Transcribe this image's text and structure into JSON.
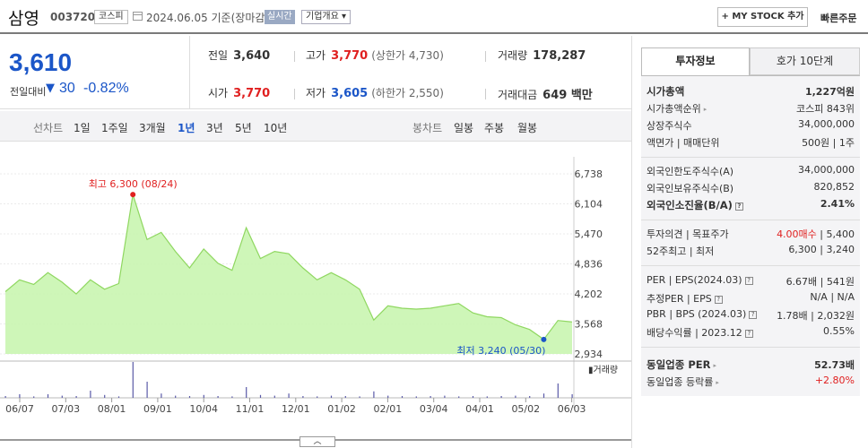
{
  "header": {
    "stock_name": "삼영",
    "stock_code": "003720",
    "market": "코스피",
    "date": "2024.06.05 기준(장마감)",
    "realtime": "실시간",
    "overview": "기업개요 ▾",
    "mystock": "+ MY STOCK 추가",
    "quick_order": "빠른주문"
  },
  "summary": {
    "price": "3,610",
    "change_label": "전일대비",
    "change_arrow": "▼",
    "change_value": "30",
    "change_rate": "-0.82%",
    "prev_close_label": "전일",
    "prev_close": "3,640",
    "high_label": "고가",
    "high": "3,770",
    "upper_limit": "(상한가 4,730)",
    "volume_label": "거래량",
    "volume": "178,287",
    "open_label": "시가",
    "open": "3,770",
    "low_label": "저가",
    "low": "3,605",
    "lower_limit": "(하한가 2,550)",
    "amount_label": "거래대금",
    "amount": "649 백만"
  },
  "periods": {
    "line_label": "선차트",
    "line_items": [
      "1일",
      "1주일",
      "3개월",
      "1년",
      "3년",
      "5년",
      "10년"
    ],
    "active": "1년",
    "candle_label": "봉차트",
    "candle_items": [
      "일봉",
      "주봉",
      "월봉"
    ]
  },
  "chart_data": {
    "type": "area",
    "title": "",
    "y_ticks": [
      "6,738",
      "6,104",
      "5,470",
      "4,836",
      "4,202",
      "3,568",
      "2,934"
    ],
    "ylim": [
      2934,
      6738
    ],
    "x_ticks": [
      "06/07",
      "07/03",
      "08/01",
      "09/01",
      "10/04",
      "11/01",
      "12/01",
      "01/02",
      "02/01",
      "03/04",
      "04/01",
      "05/02",
      "06/03"
    ],
    "max_label": "최고 6,300 (08/24)",
    "min_label": "최저 3,240 (05/30)",
    "volume_label": "거래량",
    "x": [
      "06/07",
      "06/15",
      "06/22",
      "07/03",
      "07/12",
      "07/21",
      "08/01",
      "08/10",
      "08/18",
      "08/24",
      "08/30",
      "09/01",
      "09/12",
      "09/22",
      "10/04",
      "10/16",
      "10/25",
      "11/01",
      "11/10",
      "11/20",
      "12/01",
      "12/11",
      "12/20",
      "01/02",
      "01/12",
      "01/22",
      "02/01",
      "02/13",
      "02/23",
      "03/04",
      "03/14",
      "03/25",
      "04/01",
      "04/10",
      "04/20",
      "05/02",
      "05/14",
      "05/24",
      "05/30",
      "06/03",
      "06/05"
    ],
    "values": [
      4250,
      4500,
      4400,
      4650,
      4450,
      4200,
      4500,
      4300,
      4420,
      6300,
      5350,
      5500,
      5100,
      4750,
      5150,
      4850,
      4700,
      5600,
      4950,
      5100,
      5050,
      4750,
      4500,
      4650,
      4500,
      4300,
      3650,
      3950,
      3900,
      3880,
      3900,
      3950,
      4000,
      3800,
      3720,
      3700,
      3550,
      3450,
      3240,
      3640,
      3610
    ],
    "volume": [
      0.05,
      0.1,
      0.04,
      0.1,
      0.06,
      0.05,
      0.2,
      0.08,
      0.04,
      1.0,
      0.45,
      0.12,
      0.06,
      0.05,
      0.08,
      0.05,
      0.04,
      0.3,
      0.08,
      0.06,
      0.12,
      0.05,
      0.04,
      0.06,
      0.05,
      0.04,
      0.18,
      0.06,
      0.05,
      0.04,
      0.05,
      0.06,
      0.04,
      0.05,
      0.04,
      0.05,
      0.06,
      0.05,
      0.12,
      0.4,
      0.1
    ]
  },
  "scroll_handle": "︿",
  "tabs": {
    "info": "투자정보",
    "hoga": "호가 10단계"
  },
  "info": {
    "market_cap_label": "시가총액",
    "market_cap": "1,227억원",
    "rank_label": "시가총액순위",
    "rank": "코스피 843위",
    "shares_label": "상장주식수",
    "shares": "34,000,000",
    "face_label": "액면가 | 매매단위",
    "face": "500원 | 1주",
    "foreign_limit_label": "외국인한도주식수(A)",
    "foreign_limit": "34,000,000",
    "foreign_hold_label": "외국인보유주식수(B)",
    "foreign_hold": "820,852",
    "foreign_rate_label": "외국인소진율(B/A)",
    "foreign_rate": "2.41%",
    "opinion_label": "투자의견 | 목표주가",
    "opinion_rating": "4.00매수",
    "opinion_target": " | 5,400",
    "week52_label": "52주최고 | 최저",
    "week52": "6,300 | 3,240",
    "per_label": "PER | EPS(2024.03)",
    "per": "6.67배 | 541원",
    "est_per_label": "추정PER | EPS",
    "est_per": "N/A | N/A",
    "pbr_label": "PBR | BPS (2024.03)",
    "pbr": "1.78배 | 2,032원",
    "div_label": "배당수익률 | 2023.12",
    "div": "0.55%",
    "sector_per_label": "동일업종 PER",
    "sector_per": "52.73배",
    "sector_rate_label": "동일업종 등락률",
    "sector_rate": "+2.80%"
  },
  "colors": {
    "up": "#e02020",
    "down": "#1b56c8",
    "area": "#c9f5b0",
    "line": "#8fd760"
  }
}
